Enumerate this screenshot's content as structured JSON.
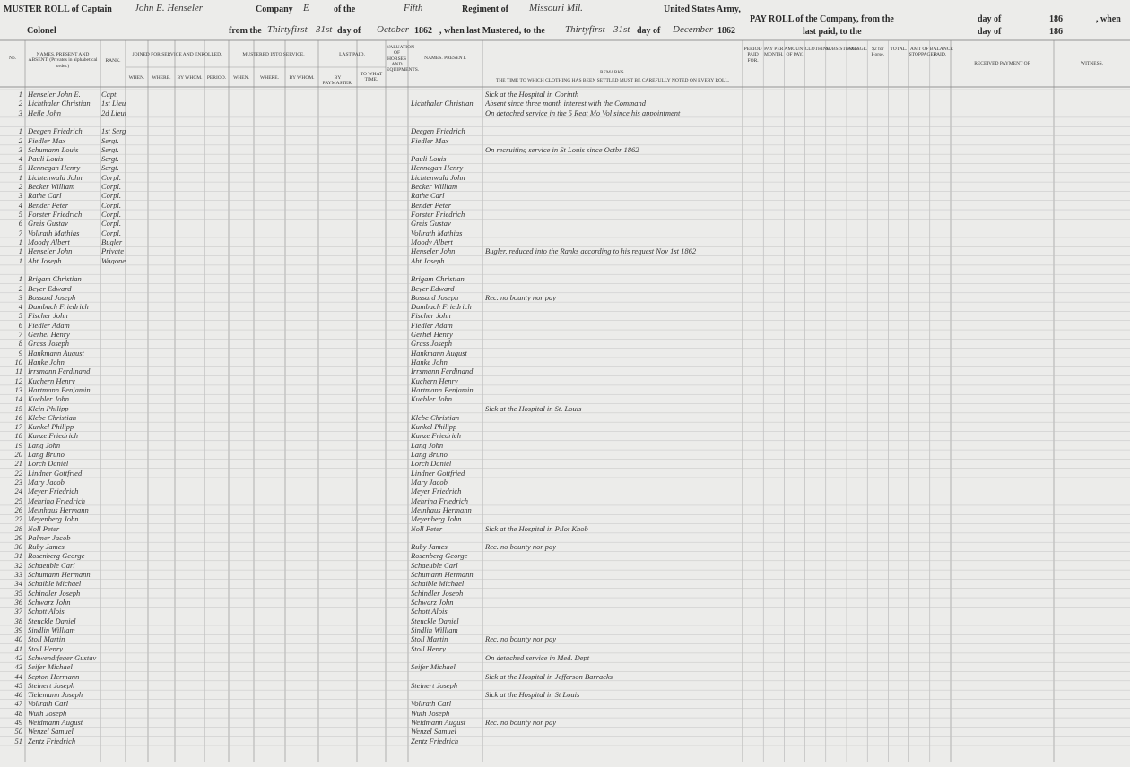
{
  "header": {
    "muster_roll": "MUSTER ROLL of Captain",
    "captain": "John E. Henseler",
    "company": "Company",
    "company_letter": "E",
    "of_the": "of the",
    "regiment_no": "Fifth",
    "regiment_of": "Regiment of",
    "state": "Missouri Mil.",
    "army": "United States Army,",
    "colonel": "Colonel",
    "from_the": "from the",
    "from_day_words": "Thirtyfirst",
    "from_day": "31st",
    "day_of": "day of",
    "from_month": "October",
    "from_year": "1862",
    "when_last": ", when last Mustered, to the",
    "to_day_words": "Thirtyfirst",
    "to_day": "31st",
    "day_of_2": "day of",
    "to_month": "December",
    "to_year": "1862"
  },
  "pay_roll": {
    "line1": "PAY ROLL of the Company, from the",
    "day_of": "day of",
    "year": "186",
    "when": ", when",
    "line2": "last paid, to the",
    "day_of_2": "day of",
    "year_2": "186"
  },
  "columns": {
    "no": "No.",
    "names": "NAMES. PRESENT AND ABSENT. (Privates in alphabetical order.)",
    "rank": "RANK.",
    "joined": "JOINED FOR SERVICE AND ENROLLED.",
    "joined_when": "WHEN.",
    "joined_where": "WHERE.",
    "joined_by": "BY WHOM.",
    "joined_period": "PERIOD.",
    "mustered": "MUSTERED INTO SERVICE.",
    "mustered_when": "WHEN.",
    "mustered_where": "WHERE.",
    "mustered_by": "BY WHOM.",
    "last_paid": "LAST PAID.",
    "paymaster": "BY PAYMASTER.",
    "to_what_time": "TO WHAT TIME.",
    "valuation": "VALUATION OF HORSES AND EQUIPMENTS.",
    "names_present": "NAMES. PRESENT.",
    "remarks": "REMARKS.",
    "clothing_note": "THE TIME TO WHICH CLOTHING HAS BEEN SETTLED MUST BE CAREFULLY NOTED ON EVERY ROLL.",
    "pay": [
      "PERIOD PAID FOR.",
      "PAY PER MONTH.",
      "AMOUNT OF PAY.",
      "CLOTHING.",
      "SUBSISTENCE.",
      "FORAGE.",
      "$2 for Horse.",
      "TOTAL.",
      "AMT OF STOPPAGES.",
      "BALANCE PAID."
    ],
    "received": "RECEIVED PAYMENT OF",
    "witness": "WITNESS."
  },
  "groups": [
    {
      "rows": [
        [
          "1",
          "Henseler John E.",
          "Capt.",
          null,
          "Sick at the Hospital in Corinth"
        ],
        [
          "2",
          "Lichthaler Christian",
          "1st Lieut.",
          "Lichthaler Christian",
          "Absent since three month interest with the Command"
        ],
        [
          "3",
          "Heile John",
          "2d Lieut.",
          null,
          "On detached service in the 5 Regt Mo Vol since his appointment"
        ]
      ]
    },
    {
      "rows": [
        [
          "1",
          "Deegen Friedrich",
          "1st Sergt.",
          "Deegen Friedrich",
          null
        ],
        [
          "2",
          "Fiedler Max",
          "Sergt.",
          "Fiedler Max",
          null
        ],
        [
          "3",
          "Schumann Louis",
          "Sergt.",
          null,
          "On recruiting service in St Louis since Octbr 1862"
        ],
        [
          "4",
          "Pauli Louis",
          "Sergt.",
          "Pauli Louis",
          null
        ],
        [
          "5",
          "Hennegan Henry",
          "Sergt.",
          "Hennegan Henry",
          null
        ],
        [
          "1",
          "Lichtenwald John",
          "Corpl.",
          "Lichtenwald John",
          null
        ],
        [
          "2",
          "Becker William",
          "Corpl.",
          "Becker William",
          null
        ],
        [
          "3",
          "Rathe Carl",
          "Corpl.",
          "Rathe Carl",
          null
        ],
        [
          "4",
          "Bender Peter",
          "Corpl.",
          "Bender Peter",
          null
        ],
        [
          "5",
          "Forster Friedrich",
          "Corpl.",
          "Forster Friedrich",
          null
        ],
        [
          "6",
          "Greis Gustav",
          "Corpl.",
          "Greis Gustav",
          null
        ],
        [
          "7",
          "Vollrath Mathias",
          "Corpl.",
          "Vollrath Mathias",
          null
        ],
        [
          "1",
          "Moody Albert",
          "Bugler",
          "Moody Albert",
          null
        ],
        [
          "1",
          "Henseler John",
          "Private",
          "Henseler John",
          "Bugler, reduced into the Ranks according to his request Nov 1st 1862"
        ],
        [
          "1",
          "Abt Joseph",
          "Wagoner",
          "Abt Joseph",
          null
        ]
      ]
    },
    {
      "rows": [
        [
          "1",
          "Brigam Christian",
          null,
          "Brigam Christian",
          null
        ],
        [
          "2",
          "Beyer Edward",
          null,
          "Beyer Edward",
          null
        ],
        [
          "3",
          "Bossard Joseph",
          null,
          "Bossard Joseph",
          "Rec. no bounty nor pay"
        ],
        [
          "4",
          "Dambach Friedrich",
          null,
          "Dambach Friedrich",
          null
        ],
        [
          "5",
          "Fischer John",
          null,
          "Fischer John",
          null
        ],
        [
          "6",
          "Fiedler Adam",
          null,
          "Fiedler Adam",
          null
        ],
        [
          "7",
          "Gerhel Henry",
          null,
          "Gerhel Henry",
          null
        ],
        [
          "8",
          "Grass Joseph",
          null,
          "Grass Joseph",
          null
        ],
        [
          "9",
          "Hankmann August",
          null,
          "Hankmann August",
          null
        ],
        [
          "10",
          "Hanke John",
          null,
          "Hanke John",
          null
        ],
        [
          "11",
          "Irrsmann Ferdinand",
          null,
          "Irrsmann Ferdinand",
          null
        ],
        [
          "12",
          "Kuchern Henry",
          null,
          "Kuchern Henry",
          null
        ],
        [
          "13",
          "Hartmann Benjamin",
          null,
          "Hartmann Benjamin",
          null
        ],
        [
          "14",
          "Kuebler John",
          null,
          "Kuebler John",
          null
        ],
        [
          "15",
          "Klein Philipp",
          null,
          null,
          "Sick at the Hospital in St. Louis"
        ],
        [
          "16",
          "Klebe Christian",
          null,
          "Klebe Christian",
          null
        ],
        [
          "17",
          "Kunkel Philipp",
          null,
          "Kunkel Philipp",
          null
        ],
        [
          "18",
          "Kunze Friedrich",
          null,
          "Kunze Friedrich",
          null
        ],
        [
          "19",
          "Lang John",
          null,
          "Lang John",
          null
        ],
        [
          "20",
          "Lang Bruno",
          null,
          "Lang Bruno",
          null
        ],
        [
          "21",
          "Lorch Daniel",
          null,
          "Lorch Daniel",
          null
        ],
        [
          "22",
          "Lindner Gottfried",
          null,
          "Lindner Gottfried",
          null
        ],
        [
          "23",
          "Mary Jacob",
          null,
          "Mary Jacob",
          null
        ],
        [
          "24",
          "Meyer Friedrich",
          null,
          "Meyer Friedrich",
          null
        ],
        [
          "25",
          "Mehring Friedrich",
          null,
          "Mehring Friedrich",
          null
        ],
        [
          "26",
          "Meinhaus Hermann",
          null,
          "Meinhaus Hermann",
          null
        ],
        [
          "27",
          "Meyenberg John",
          null,
          "Meyenberg John",
          null
        ],
        [
          "28",
          "Noll Peter",
          null,
          "Noll Peter",
          "Sick at the Hospital in Pilot Knob"
        ],
        [
          "29",
          "Palmer Jacob",
          null,
          null,
          null
        ],
        [
          "30",
          "Ruby James",
          null,
          "Ruby James",
          "Rec. no bounty nor pay"
        ],
        [
          "31",
          "Rosenberg George",
          null,
          "Rosenberg George",
          null
        ],
        [
          "32",
          "Schaeuble Carl",
          null,
          "Schaeuble Carl",
          null
        ],
        [
          "33",
          "Schumann Hermann",
          null,
          "Schumann Hermann",
          null
        ],
        [
          "34",
          "Schaible Michael",
          null,
          "Schaible Michael",
          null
        ],
        [
          "35",
          "Schindler Joseph",
          null,
          "Schindler Joseph",
          null
        ],
        [
          "36",
          "Schwarz John",
          null,
          "Schwarz John",
          null
        ],
        [
          "37",
          "Schott Alois",
          null,
          "Schott Alois",
          null
        ],
        [
          "38",
          "Steuckle Daniel",
          null,
          "Steuckle Daniel",
          null
        ],
        [
          "39",
          "Sindlin William",
          null,
          "Sindlin William",
          null
        ],
        [
          "40",
          "Stoll Martin",
          null,
          "Stoll Martin",
          "Rec. no bounty nor pay"
        ],
        [
          "41",
          "Stoll Henry",
          null,
          "Stoll Henry",
          null
        ],
        [
          "42",
          "Schwendtfeger Gustav",
          null,
          null,
          "On detached service in Med. Dept"
        ],
        [
          "43",
          "Seifer Michael",
          null,
          "Seifer Michael",
          null
        ],
        [
          "44",
          "Septon Hermann",
          null,
          null,
          "Sick at the Hospital in Jefferson Barracks"
        ],
        [
          "45",
          "Steinert Joseph",
          null,
          "Steinert Joseph",
          null
        ],
        [
          "46",
          "Tielemann Joseph",
          null,
          null,
          "Sick at the Hospital in St Louis"
        ],
        [
          "47",
          "Vollrath Carl",
          null,
          "Vollrath Carl",
          null
        ],
        [
          "48",
          "Wuth Joseph",
          null,
          "Wuth Joseph",
          null
        ],
        [
          "49",
          "Weidmann August",
          null,
          "Weidmann August",
          "Rec. no bounty nor pay"
        ],
        [
          "50",
          "Wenzel Samuel",
          null,
          "Wenzel Samuel",
          null
        ],
        [
          "51",
          "Zentz Friedrich",
          null,
          "Zentz Friedrich",
          null
        ]
      ]
    }
  ]
}
